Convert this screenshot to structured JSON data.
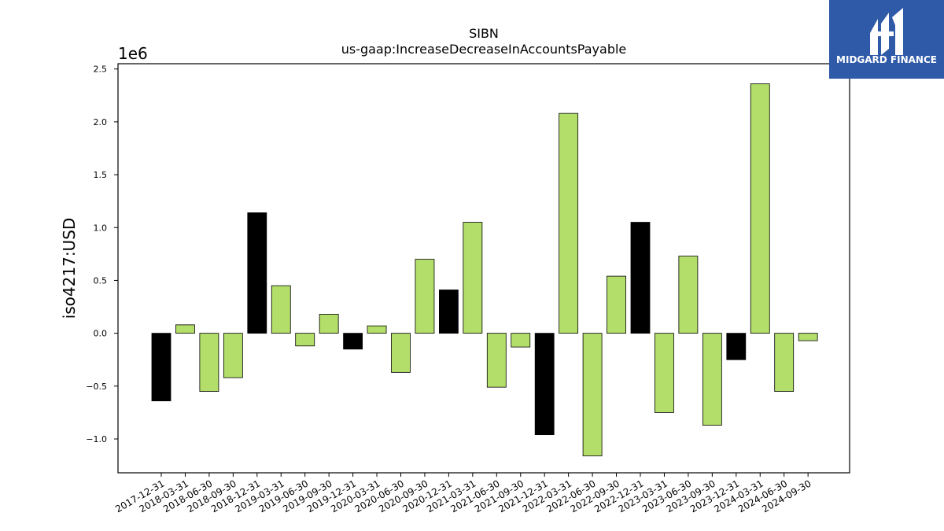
{
  "chart_data": {
    "type": "bar",
    "title": "SIBN",
    "subtitle": "us-gaap:IncreaseDecreaseInAccountsPayable",
    "xlabel": "",
    "ylabel": "iso4217:USD",
    "y_scale_label": "1e6",
    "ylim": [
      -1.32,
      2.55
    ],
    "yticks": [
      -1.0,
      -0.5,
      0.0,
      0.5,
      1.0,
      1.5,
      2.0,
      2.5
    ],
    "ytick_labels": [
      "−1.0",
      "−0.5",
      "0.0",
      "0.5",
      "1.0",
      "1.5",
      "2.0",
      "2.5"
    ],
    "grid": false,
    "colors": {
      "quarter": "#b3de69",
      "annual": "#000000",
      "edge": "#000000"
    },
    "categories": [
      "2017-12-31",
      "2018-03-31",
      "2018-06-30",
      "2018-09-30",
      "2018-12-31",
      "2019-03-31",
      "2019-06-30",
      "2019-09-30",
      "2019-12-31",
      "2020-03-31",
      "2020-06-30",
      "2020-09-30",
      "2020-12-31",
      "2021-03-31",
      "2021-06-30",
      "2021-09-30",
      "2021-12-31",
      "2022-03-31",
      "2022-06-30",
      "2022-09-30",
      "2022-12-31",
      "2023-03-31",
      "2023-06-30",
      "2023-09-30",
      "2023-12-31",
      "2024-03-31",
      "2024-06-30",
      "2024-09-30"
    ],
    "values": [
      -0.64,
      0.08,
      -0.55,
      -0.42,
      1.14,
      0.45,
      -0.12,
      0.18,
      -0.15,
      0.07,
      -0.37,
      0.7,
      0.41,
      1.05,
      -0.51,
      -0.13,
      -0.96,
      2.08,
      -1.16,
      0.54,
      1.05,
      -0.75,
      0.73,
      -0.87,
      -0.25,
      2.36,
      -0.55,
      -0.07
    ],
    "bar_types": [
      "annual",
      "quarter",
      "quarter",
      "quarter",
      "annual",
      "quarter",
      "quarter",
      "quarter",
      "annual",
      "quarter",
      "quarter",
      "quarter",
      "annual",
      "quarter",
      "quarter",
      "quarter",
      "annual",
      "quarter",
      "quarter",
      "quarter",
      "annual",
      "quarter",
      "quarter",
      "quarter",
      "annual",
      "quarter",
      "quarter",
      "quarter"
    ]
  },
  "logo": {
    "text": "MIDGARD FINANCE",
    "icon": "midgard-logo-icon",
    "background": "#2f5aa8"
  }
}
